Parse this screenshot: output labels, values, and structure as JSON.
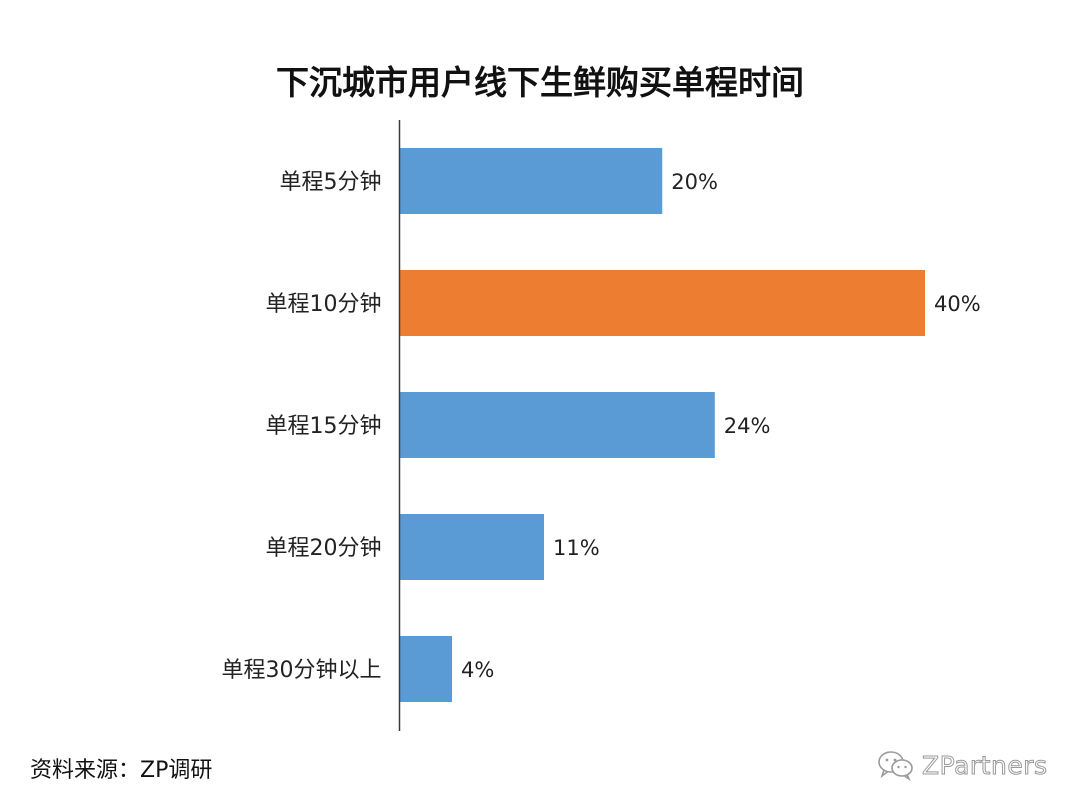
{
  "chart_data": {
    "type": "bar",
    "orientation": "horizontal",
    "title": "下沉城市用户线下生鲜购买单程时间",
    "categories": [
      "单程5分钟",
      "单程10分钟",
      "单程15分钟",
      "单程20分钟",
      "单程30分钟以上"
    ],
    "values": [
      20,
      40,
      24,
      11,
      4
    ],
    "value_labels": [
      "20%",
      "40%",
      "24%",
      "11%",
      "4%"
    ],
    "unit": "%",
    "xlim": [
      0,
      40
    ],
    "grid": false,
    "legend": "none",
    "bar_colors": [
      "#5b9bd5",
      "#ed7d31",
      "#5b9bd5",
      "#5b9bd5",
      "#5b9bd5"
    ]
  },
  "footer": {
    "source": "资料来源：ZP调研",
    "watermark": "ZPartners",
    "watermark_icon": "wechat-icon"
  }
}
